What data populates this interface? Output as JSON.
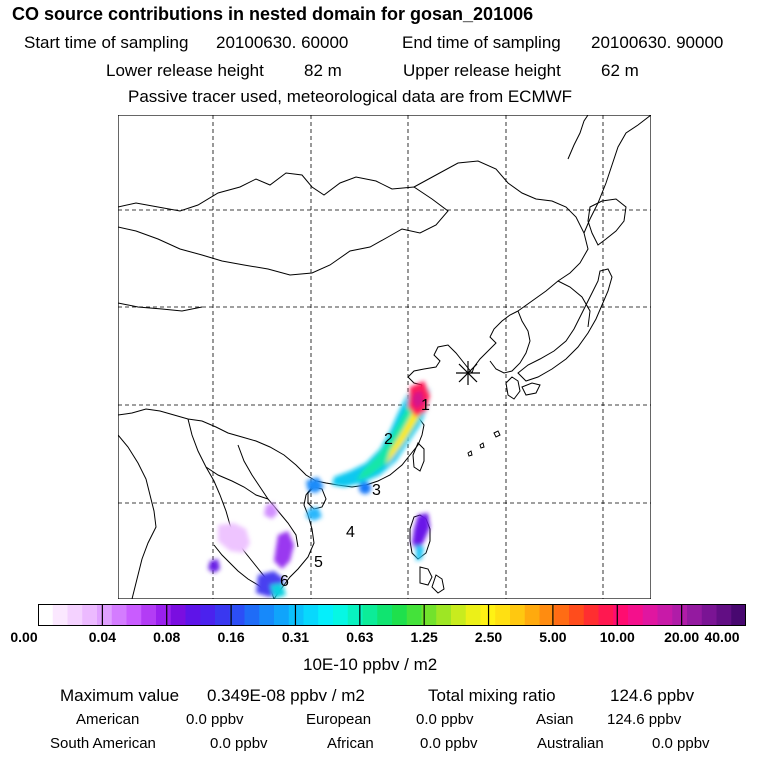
{
  "title": "CO  source contributions in nested domain for gosan_201006",
  "sampling": {
    "start_label": "Start time of sampling",
    "start_value": "20100630. 60000",
    "end_label": "End time of sampling",
    "end_value": "20100630. 90000"
  },
  "release": {
    "lower_label": "Lower release height",
    "lower_value": "82 m",
    "upper_label": "Upper release height",
    "upper_value": "62 m"
  },
  "note": "Passive tracer used, meteorological data are from ECMWF",
  "map": {
    "region_labels": [
      "1",
      "2",
      "3",
      "4",
      "5",
      "6"
    ],
    "receptor_marker": "asterisk-marker"
  },
  "colorbar": {
    "tick_labels": [
      "0.00",
      "0.04",
      "0.08",
      "0.16",
      "0.31",
      "0.63",
      "1.25",
      "2.50",
      "5.00",
      "10.00",
      "20.00",
      "40.00"
    ],
    "colors": [
      "#ffffff",
      "#fbe8ff",
      "#f4d2ff",
      "#ecbaff",
      "#e0a0ff",
      "#d47cff",
      "#c95cff",
      "#b33cf5",
      "#9a20ee",
      "#7a0ee0",
      "#5e14e8",
      "#4b22ee",
      "#3a38f0",
      "#2c4ef6",
      "#1f6cf7",
      "#1789fa",
      "#10a4fb",
      "#0cc0fc",
      "#08d8fd",
      "#05effb",
      "#06f7e4",
      "#08f2c0",
      "#0cec98",
      "#10e470",
      "#1ee04c",
      "#44e23a",
      "#72e22c",
      "#9ee624",
      "#c8ec1e",
      "#ecf018",
      "#fff214",
      "#ffe012",
      "#ffc810",
      "#ffaa0e",
      "#ff8c10",
      "#ff6c14",
      "#ff4c1c",
      "#ff2e30",
      "#ff1850",
      "#ff0c70",
      "#f4108c",
      "#e016a0",
      "#c81aa8",
      "#b01ca8",
      "#941aa0",
      "#7a1494",
      "#620e84",
      "#480870"
    ],
    "unit": "10E-10 ppbv / m2"
  },
  "summary": {
    "max_label": "Maximum value",
    "max_value": "0.349E-08 ppbv / m2",
    "total_label": "Total mixing ratio",
    "total_value": "124.6 ppbv"
  },
  "contributions": [
    {
      "label": "American",
      "value": "0.0 ppbv"
    },
    {
      "label": "European",
      "value": "0.0 ppbv"
    },
    {
      "label": "Asian",
      "value": "124.6 ppbv"
    },
    {
      "label": "South American",
      "value": "0.0 ppbv"
    },
    {
      "label": "African",
      "value": "0.0 ppbv"
    },
    {
      "label": "Australian",
      "value": "0.0 ppbv"
    }
  ]
}
